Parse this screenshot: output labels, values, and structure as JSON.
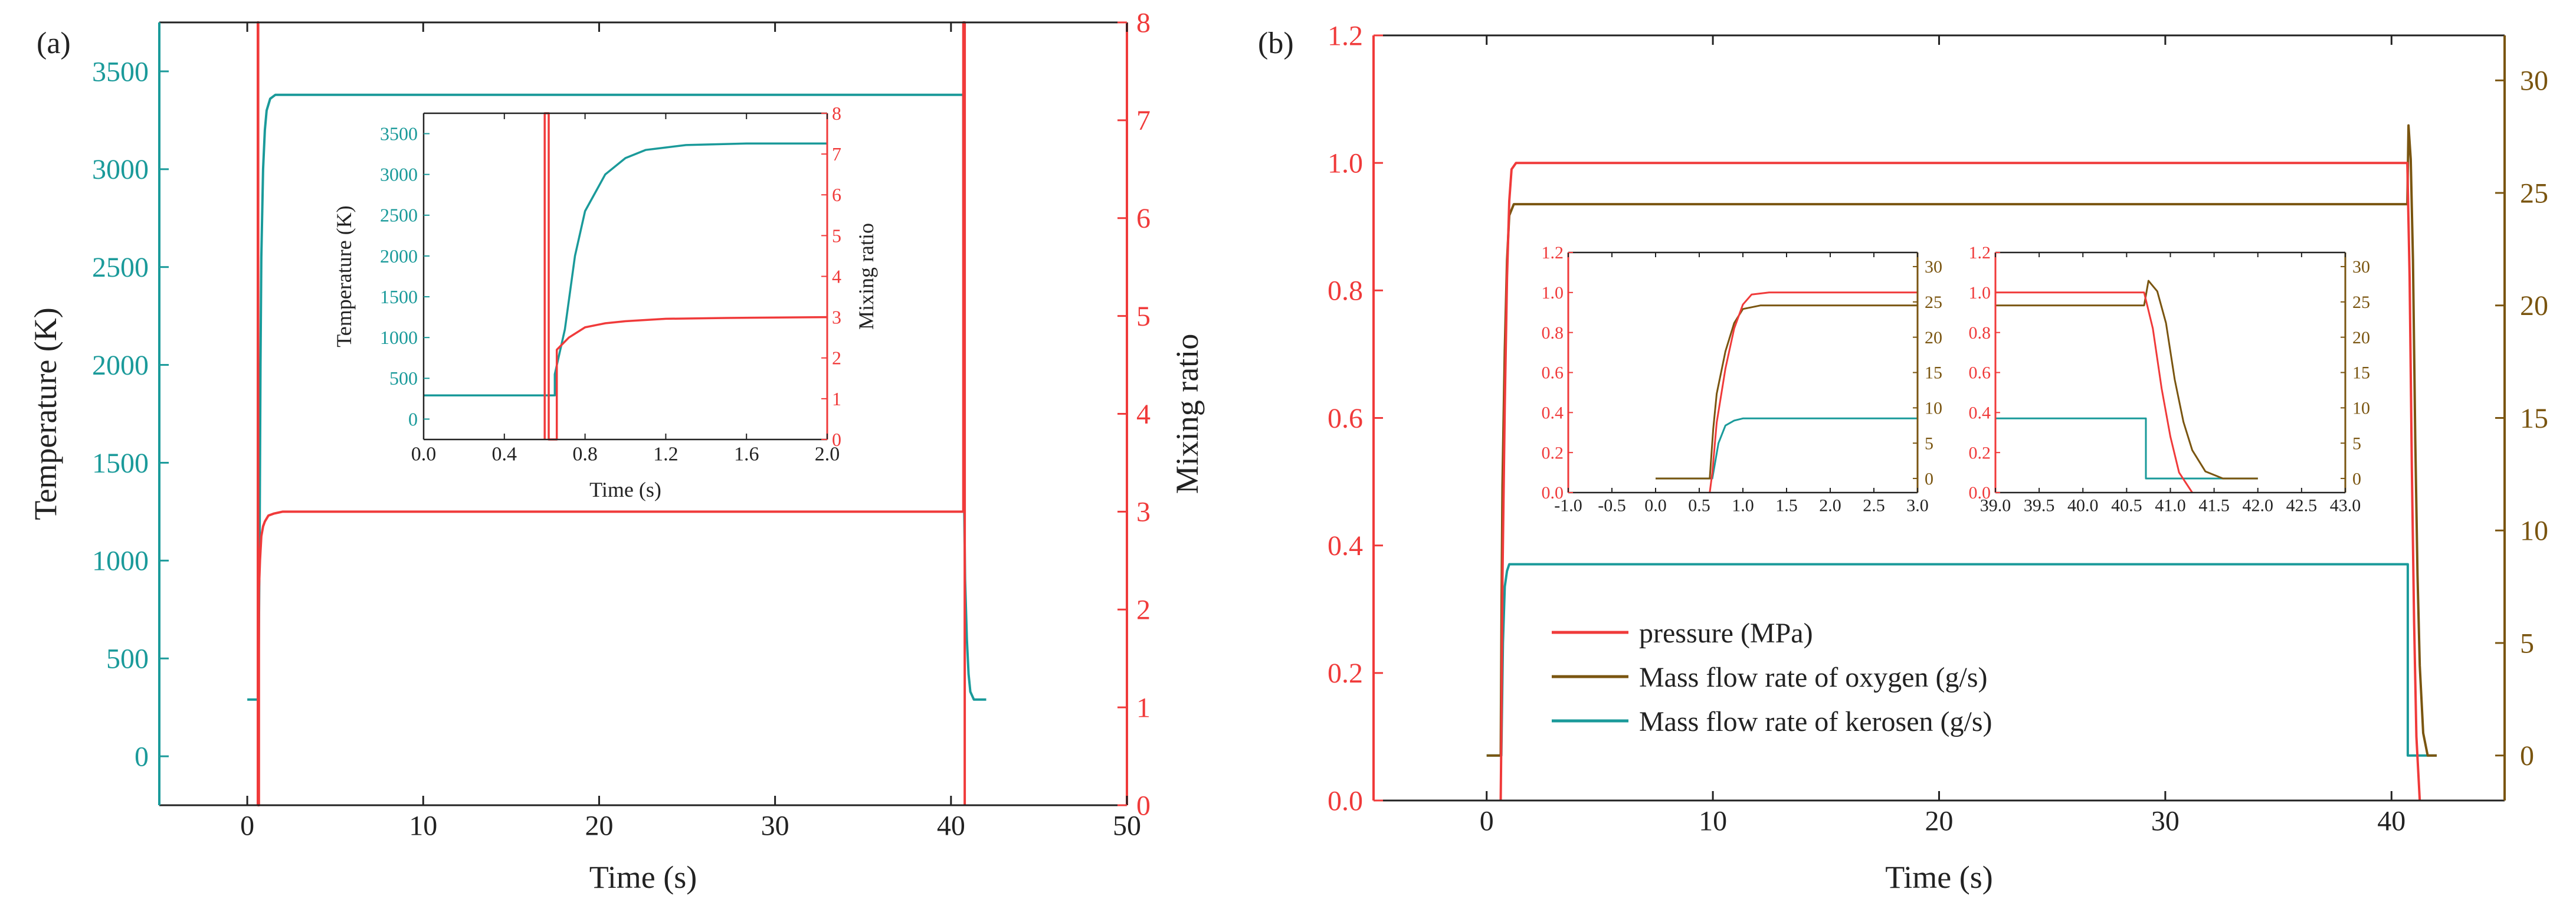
{
  "colors": {
    "teal": "#1A9A9A",
    "red": "#F03A3A",
    "olive": "#7A5510",
    "black": "#222222"
  },
  "chart_data": [
    {
      "panel_label": "(a)",
      "type": "line",
      "xlabel": "Time (s)",
      "ylabel_left": "Temperature (K)",
      "ylabel_right": "Mixing ratio",
      "xlim": [
        -5,
        50
      ],
      "ylim_left": [
        -250,
        3750
      ],
      "ylim_right": [
        0,
        8
      ],
      "xticks": [
        0,
        10,
        20,
        30,
        40,
        50
      ],
      "yticks_left": [
        0,
        500,
        1000,
        1500,
        2000,
        2500,
        3000,
        3500
      ],
      "yticks_right": [
        0,
        1,
        2,
        3,
        4,
        5,
        6,
        7,
        8
      ],
      "series": [
        {
          "axis": "left",
          "color": "teal",
          "x": [
            0.0,
            0.65,
            0.65,
            0.7,
            0.75,
            0.8,
            0.9,
            1.0,
            1.1,
            1.3,
            1.6,
            2.0,
            40.7,
            40.72,
            40.8,
            40.9,
            41.0,
            41.1,
            41.3,
            42.0
          ],
          "y": [
            290,
            290,
            550,
            1100,
            2000,
            2550,
            3000,
            3200,
            3300,
            3360,
            3380,
            3380,
            3380,
            1500,
            900,
            600,
            420,
            330,
            290,
            290
          ]
        },
        {
          "axis": "right",
          "color": "red",
          "x": [
            0.6,
            0.6,
            0.62,
            0.62,
            0.66,
            0.66,
            0.72,
            0.8,
            0.9,
            1.0,
            1.2,
            1.5,
            2.0,
            40.7,
            40.7,
            40.78,
            40.78
          ],
          "y": [
            0,
            8,
            8,
            0,
            0,
            2.2,
            2.5,
            2.75,
            2.85,
            2.9,
            2.96,
            2.98,
            3.0,
            3.0,
            8,
            8,
            0
          ]
        }
      ],
      "inset": {
        "xlabel": "Time (s)",
        "ylabel_left": "Temperature (K)",
        "ylabel_right": "Mixing ratio",
        "xlim": [
          0,
          2.0
        ],
        "ylim_left": [
          -250,
          3750
        ],
        "ylim_right": [
          0,
          8
        ],
        "xticks": [
          "0.0",
          "0.4",
          "0.8",
          "1.2",
          "1.6",
          "2.0"
        ],
        "yticks_left": [
          0,
          500,
          1000,
          1500,
          2000,
          2500,
          3000,
          3500
        ],
        "yticks_right": [
          0,
          1,
          2,
          3,
          4,
          5,
          6,
          7,
          8
        ]
      }
    },
    {
      "panel_label": "(b)",
      "type": "line",
      "xlabel": "Time (s)",
      "ylabel_left": "",
      "ylabel_right": "",
      "xlim": [
        -5,
        45
      ],
      "ylim_left": [
        0,
        1.2
      ],
      "ylim_right": [
        -2,
        32
      ],
      "xticks": [
        0,
        10,
        20,
        30,
        40
      ],
      "yticks_left": [
        "0.0",
        "0.2",
        "0.4",
        "0.6",
        "0.8",
        "1.0",
        "1.2"
      ],
      "yticks_right": [
        0,
        5,
        10,
        15,
        20,
        25,
        30
      ],
      "legend": {
        "placement": "lower-left",
        "entries": [
          "pressure (MPa)",
          "Mass flow rate of oxygen (g/s)",
          "Mass flow rate of kerosen (g/s)"
        ]
      },
      "series": [
        {
          "name": "pressure (MPa)",
          "axis": "left",
          "color": "red",
          "x": [
            0.62,
            0.65,
            0.7,
            0.8,
            0.9,
            1.0,
            1.1,
            1.3,
            40.7,
            40.8,
            40.9,
            41.0,
            41.1,
            41.25
          ],
          "y": [
            0,
            0.1,
            0.35,
            0.62,
            0.82,
            0.94,
            0.99,
            1.0,
            1.0,
            0.82,
            0.52,
            0.28,
            0.1,
            0
          ]
        },
        {
          "name": "Mass flow rate of oxygen (g/s)",
          "axis": "right",
          "color": "olive",
          "x": [
            0.0,
            0.62,
            0.66,
            0.7,
            0.8,
            0.9,
            1.0,
            1.2,
            1.5,
            40.7,
            40.75,
            40.85,
            40.95,
            41.05,
            41.15,
            41.25,
            41.4,
            41.6,
            42.0
          ],
          "y": [
            0,
            0,
            7,
            12,
            18,
            22,
            24,
            24.5,
            24.5,
            24.5,
            28,
            26.5,
            22,
            14,
            8,
            4,
            1,
            0,
            0
          ]
        },
        {
          "name": "Mass flow rate of kerosen (g/s)",
          "axis": "right",
          "color": "teal",
          "x": [
            0.0,
            0.65,
            0.72,
            0.8,
            0.9,
            1.0,
            1.2,
            40.72,
            40.72,
            42.0
          ],
          "y": [
            0,
            0,
            5,
            7.5,
            8.2,
            8.5,
            8.5,
            8.5,
            0,
            0
          ]
        }
      ],
      "inset_left": {
        "xlim": [
          -1.0,
          3.0
        ],
        "ylim_left": [
          0,
          1.2
        ],
        "ylim_right": [
          -2,
          32
        ],
        "xticks": [
          "-1.0",
          "-0.5",
          "0.0",
          "0.5",
          "1.0",
          "1.5",
          "2.0",
          "2.5",
          "3.0"
        ],
        "yticks_left": [
          "0.0",
          "0.2",
          "0.4",
          "0.6",
          "0.8",
          "1.0",
          "1.2"
        ],
        "yticks_right": [
          0,
          5,
          10,
          15,
          20,
          25,
          30
        ]
      },
      "inset_right": {
        "xlim": [
          39.0,
          43.0
        ],
        "ylim_left": [
          0,
          1.2
        ],
        "ylim_right": [
          -2,
          32
        ],
        "xticks": [
          "39.0",
          "39.5",
          "40.0",
          "40.5",
          "41.0",
          "41.5",
          "42.0",
          "42.5",
          "43.0"
        ],
        "yticks_left": [
          "0.0",
          "0.2",
          "0.4",
          "0.6",
          "0.8",
          "1.0",
          "1.2"
        ],
        "yticks_right": [
          0,
          5,
          10,
          15,
          20,
          25,
          30
        ]
      }
    }
  ]
}
